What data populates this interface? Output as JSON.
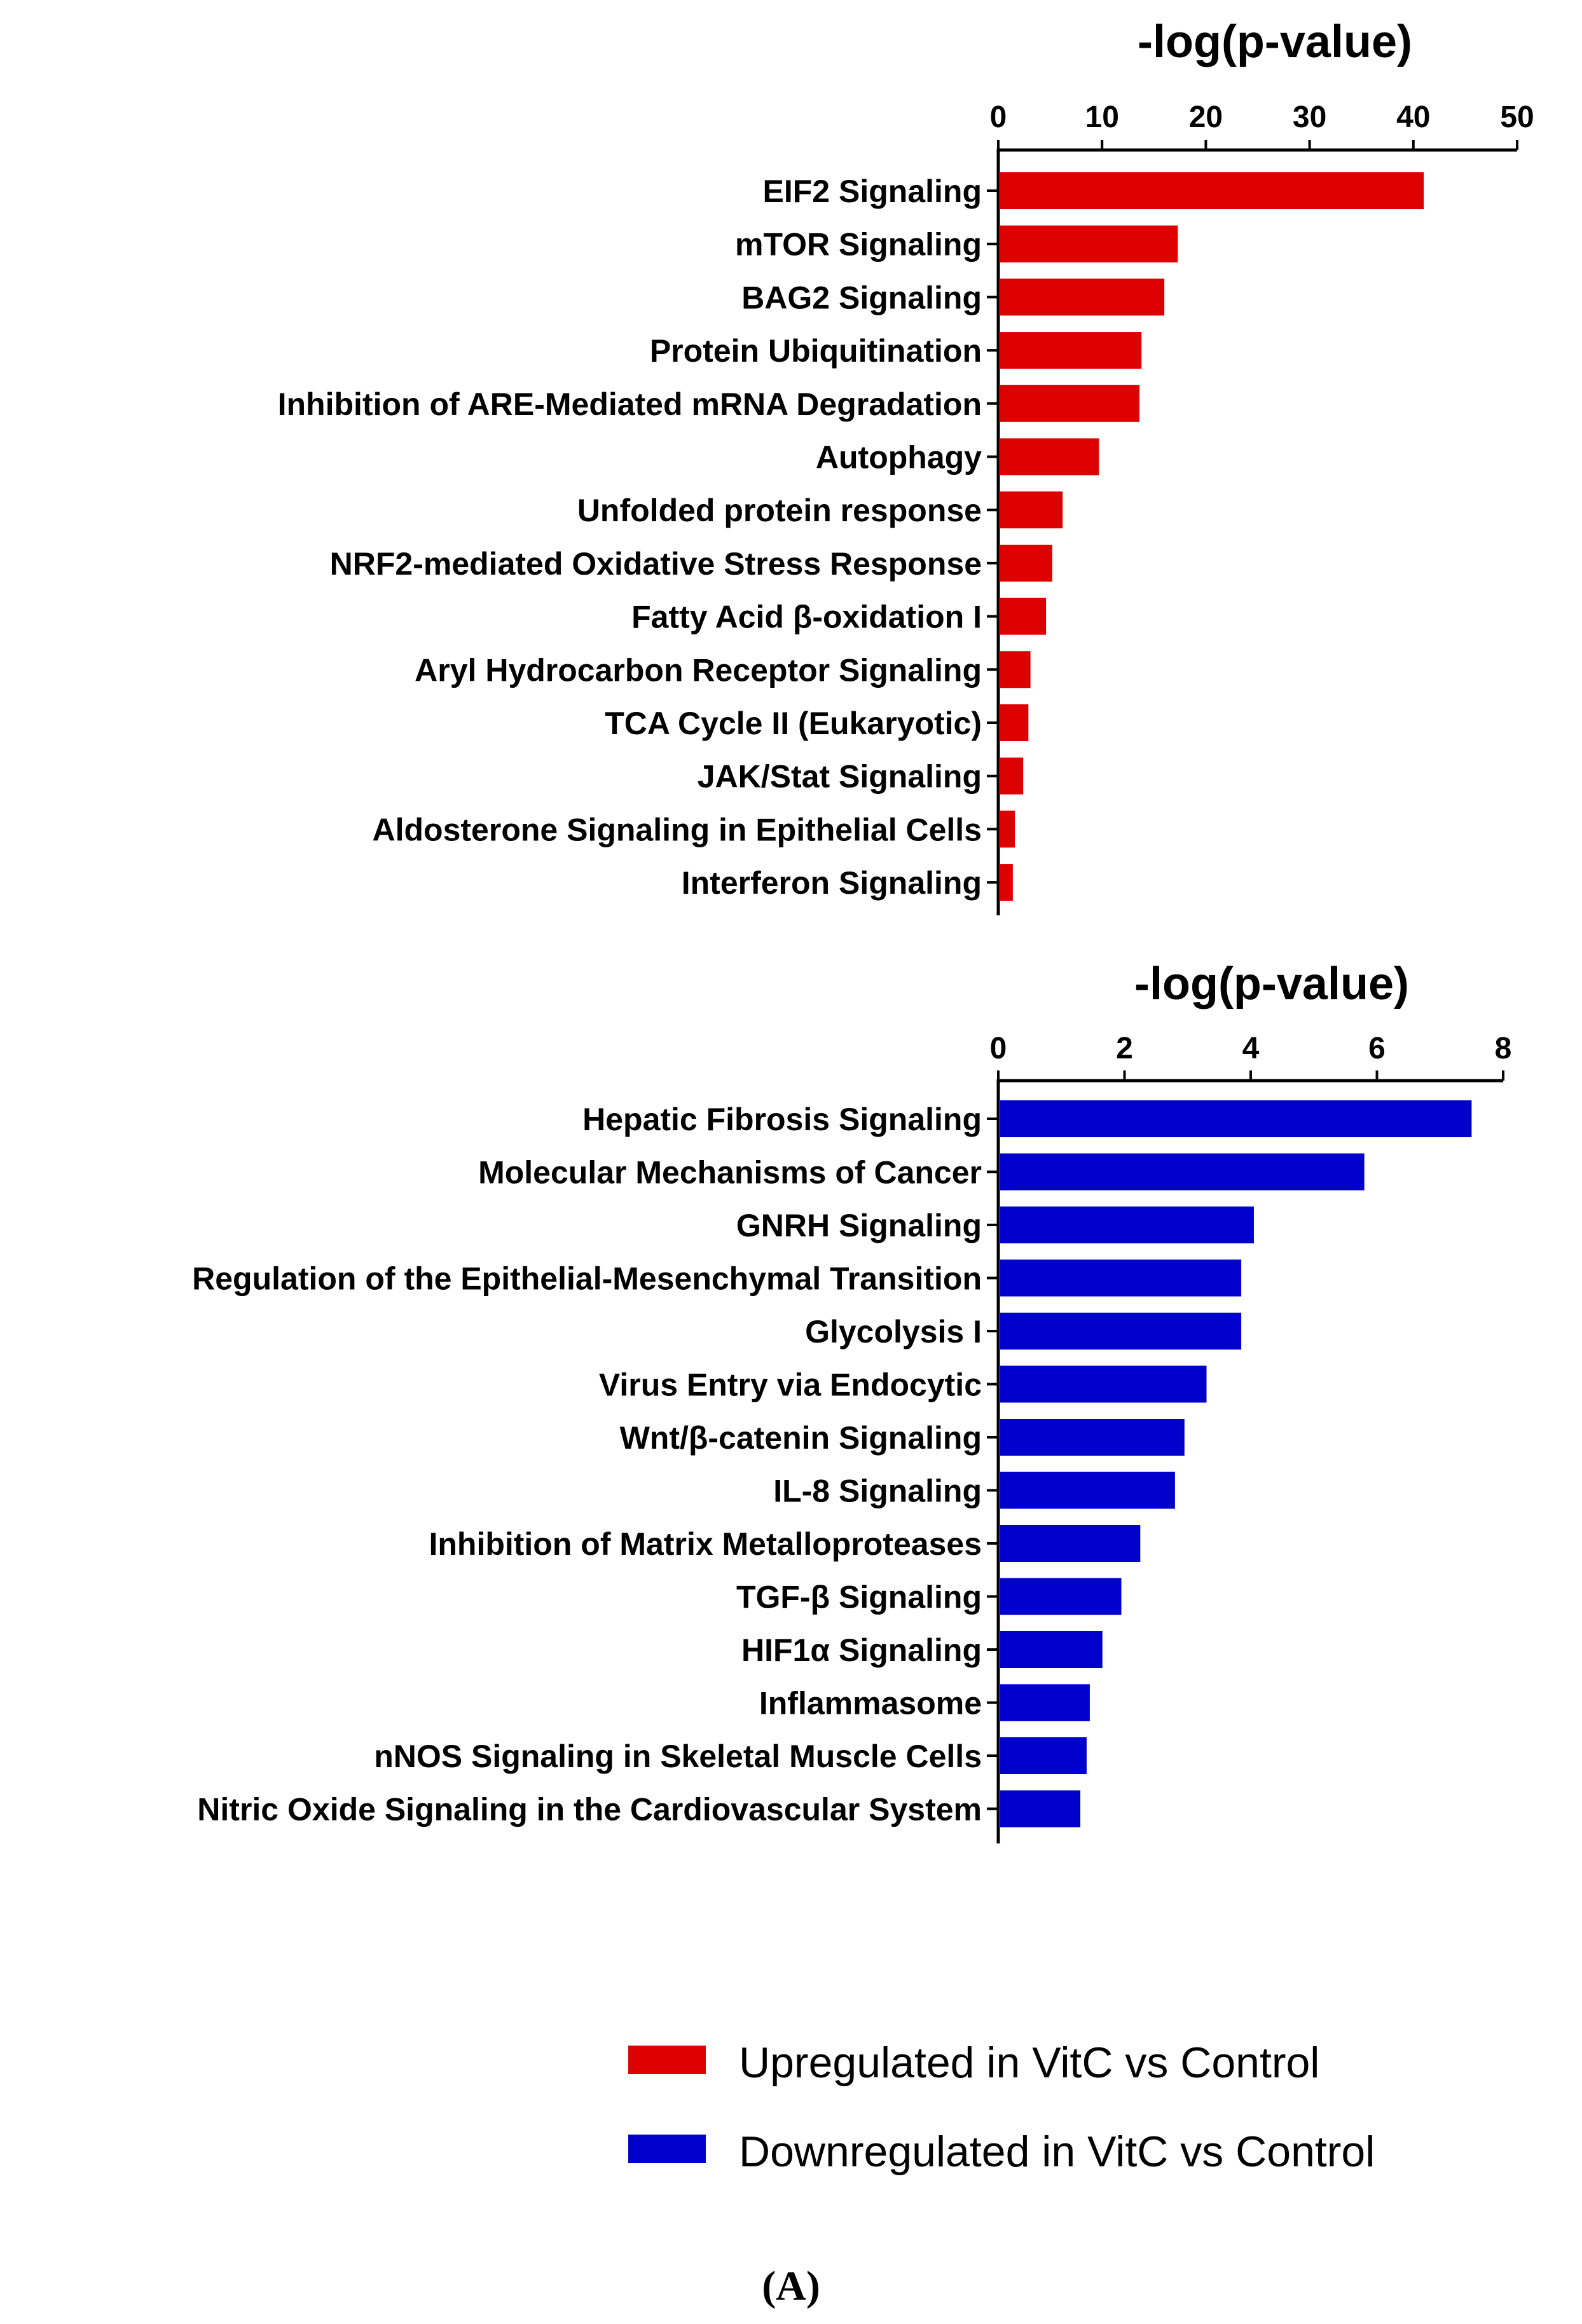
{
  "chart_data": [
    {
      "type": "bar",
      "orientation": "horizontal",
      "title": "-log(p-value)",
      "xlim": [
        0,
        50
      ],
      "xticks": [
        0,
        10,
        20,
        30,
        40,
        50
      ],
      "color": "#dd0000",
      "categories": [
        "EIF2 Signaling",
        "mTOR Signaling",
        "BAG2 Signaling",
        "Protein Ubiquitination",
        "Inhibition of ARE-Mediated mRNA Degradation",
        "Autophagy",
        "Unfolded protein response",
        "NRF2-mediated Oxidative Stress Response",
        "Fatty Acid β-oxidation I",
        "Aryl Hydrocarbon Receptor Signaling",
        "TCA Cycle II (Eukaryotic)",
        "JAK/Stat Signaling",
        "Aldosterone Signaling in Epithelial Cells",
        "Interferon Signaling"
      ],
      "values": [
        41,
        17.3,
        16,
        13.8,
        13.6,
        9.7,
        6.2,
        5.2,
        4.6,
        3.1,
        2.9,
        2.4,
        1.6,
        1.4
      ]
    },
    {
      "type": "bar",
      "orientation": "horizontal",
      "title": "-log(p-value)",
      "xlim": [
        0,
        8
      ],
      "xticks": [
        0,
        2,
        4,
        6,
        8
      ],
      "color": "#0000cc",
      "categories": [
        "Hepatic Fibrosis Signaling",
        "Molecular Mechanisms of Cancer",
        "GNRH Signaling",
        "Regulation of the Epithelial-Mesenchymal Transition",
        "Glycolysis I",
        "Virus Entry via Endocytic",
        "Wnt/β-catenin Signaling",
        "IL-8 Signaling",
        "Inhibition of Matrix Metalloproteases",
        "TGF-β Signaling",
        "HIF1α Signaling",
        "Inflammasome",
        "nNOS Signaling in Skeletal Muscle Cells",
        "Nitric Oxide Signaling in the Cardiovascular System"
      ],
      "values": [
        7.5,
        5.8,
        4.05,
        3.85,
        3.85,
        3.3,
        2.95,
        2.8,
        2.25,
        1.95,
        1.65,
        1.45,
        1.4,
        1.3
      ]
    }
  ],
  "legend": {
    "placement": "bottom-right",
    "items": [
      {
        "label": "Upregulated in VitC vs Control",
        "color": "#dd0000"
      },
      {
        "label": "Downregulated in VitC vs Control",
        "color": "#0000cc"
      }
    ]
  },
  "panel_label": "(A)"
}
